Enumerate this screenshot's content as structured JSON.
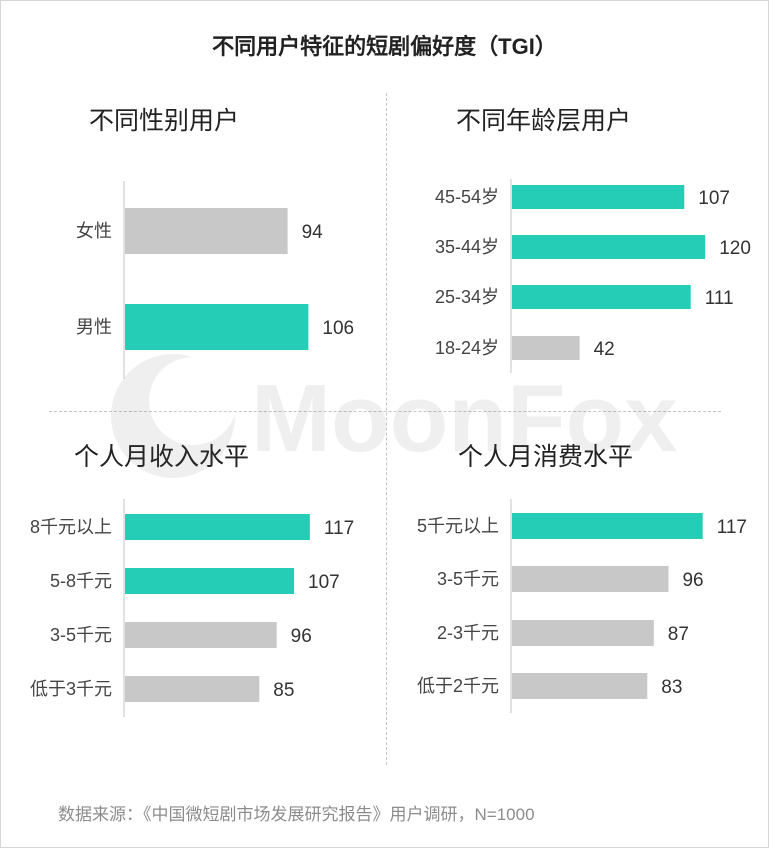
{
  "title": "不同用户特征的短剧偏好度（TGI）",
  "watermark": "MoonFox",
  "source": "数据来源：《中国微短剧市场发展研究报告》用户调研，N=1000",
  "colors": {
    "highlight": "#26cdb6",
    "normal": "#c8c8c8"
  },
  "panels": {
    "gender": {
      "title": "不同性别用户"
    },
    "age": {
      "title": "不同年龄层用户"
    },
    "income": {
      "title": "个人月收入水平"
    },
    "spending": {
      "title": "个人月消费水平"
    }
  },
  "chart_data": [
    {
      "type": "bar",
      "orientation": "horizontal",
      "title": "不同性别用户",
      "categories": [
        "女性",
        "男性"
      ],
      "values": [
        94,
        106
      ],
      "highlight": [
        false,
        true
      ],
      "xlim": [
        0,
        130
      ]
    },
    {
      "type": "bar",
      "orientation": "horizontal",
      "title": "不同年龄层用户",
      "categories": [
        "45-54岁",
        "35-44岁",
        "25-34岁",
        "18-24岁"
      ],
      "values": [
        107,
        120,
        111,
        42
      ],
      "highlight": [
        true,
        true,
        true,
        false
      ],
      "xlim": [
        0,
        130
      ]
    },
    {
      "type": "bar",
      "orientation": "horizontal",
      "title": "个人月收入水平",
      "categories": [
        "8千元以上",
        "5-8千元",
        "3-5千元",
        "低于3千元"
      ],
      "values": [
        117,
        107,
        96,
        85
      ],
      "highlight": [
        true,
        true,
        false,
        false
      ],
      "xlim": [
        0,
        130
      ]
    },
    {
      "type": "bar",
      "orientation": "horizontal",
      "title": "个人月消费水平",
      "categories": [
        "5千元以上",
        "3-5千元",
        "2-3千元",
        "低于2千元"
      ],
      "values": [
        117,
        96,
        87,
        83
      ],
      "highlight": [
        true,
        false,
        false,
        false
      ],
      "xlim": [
        0,
        130
      ]
    }
  ]
}
